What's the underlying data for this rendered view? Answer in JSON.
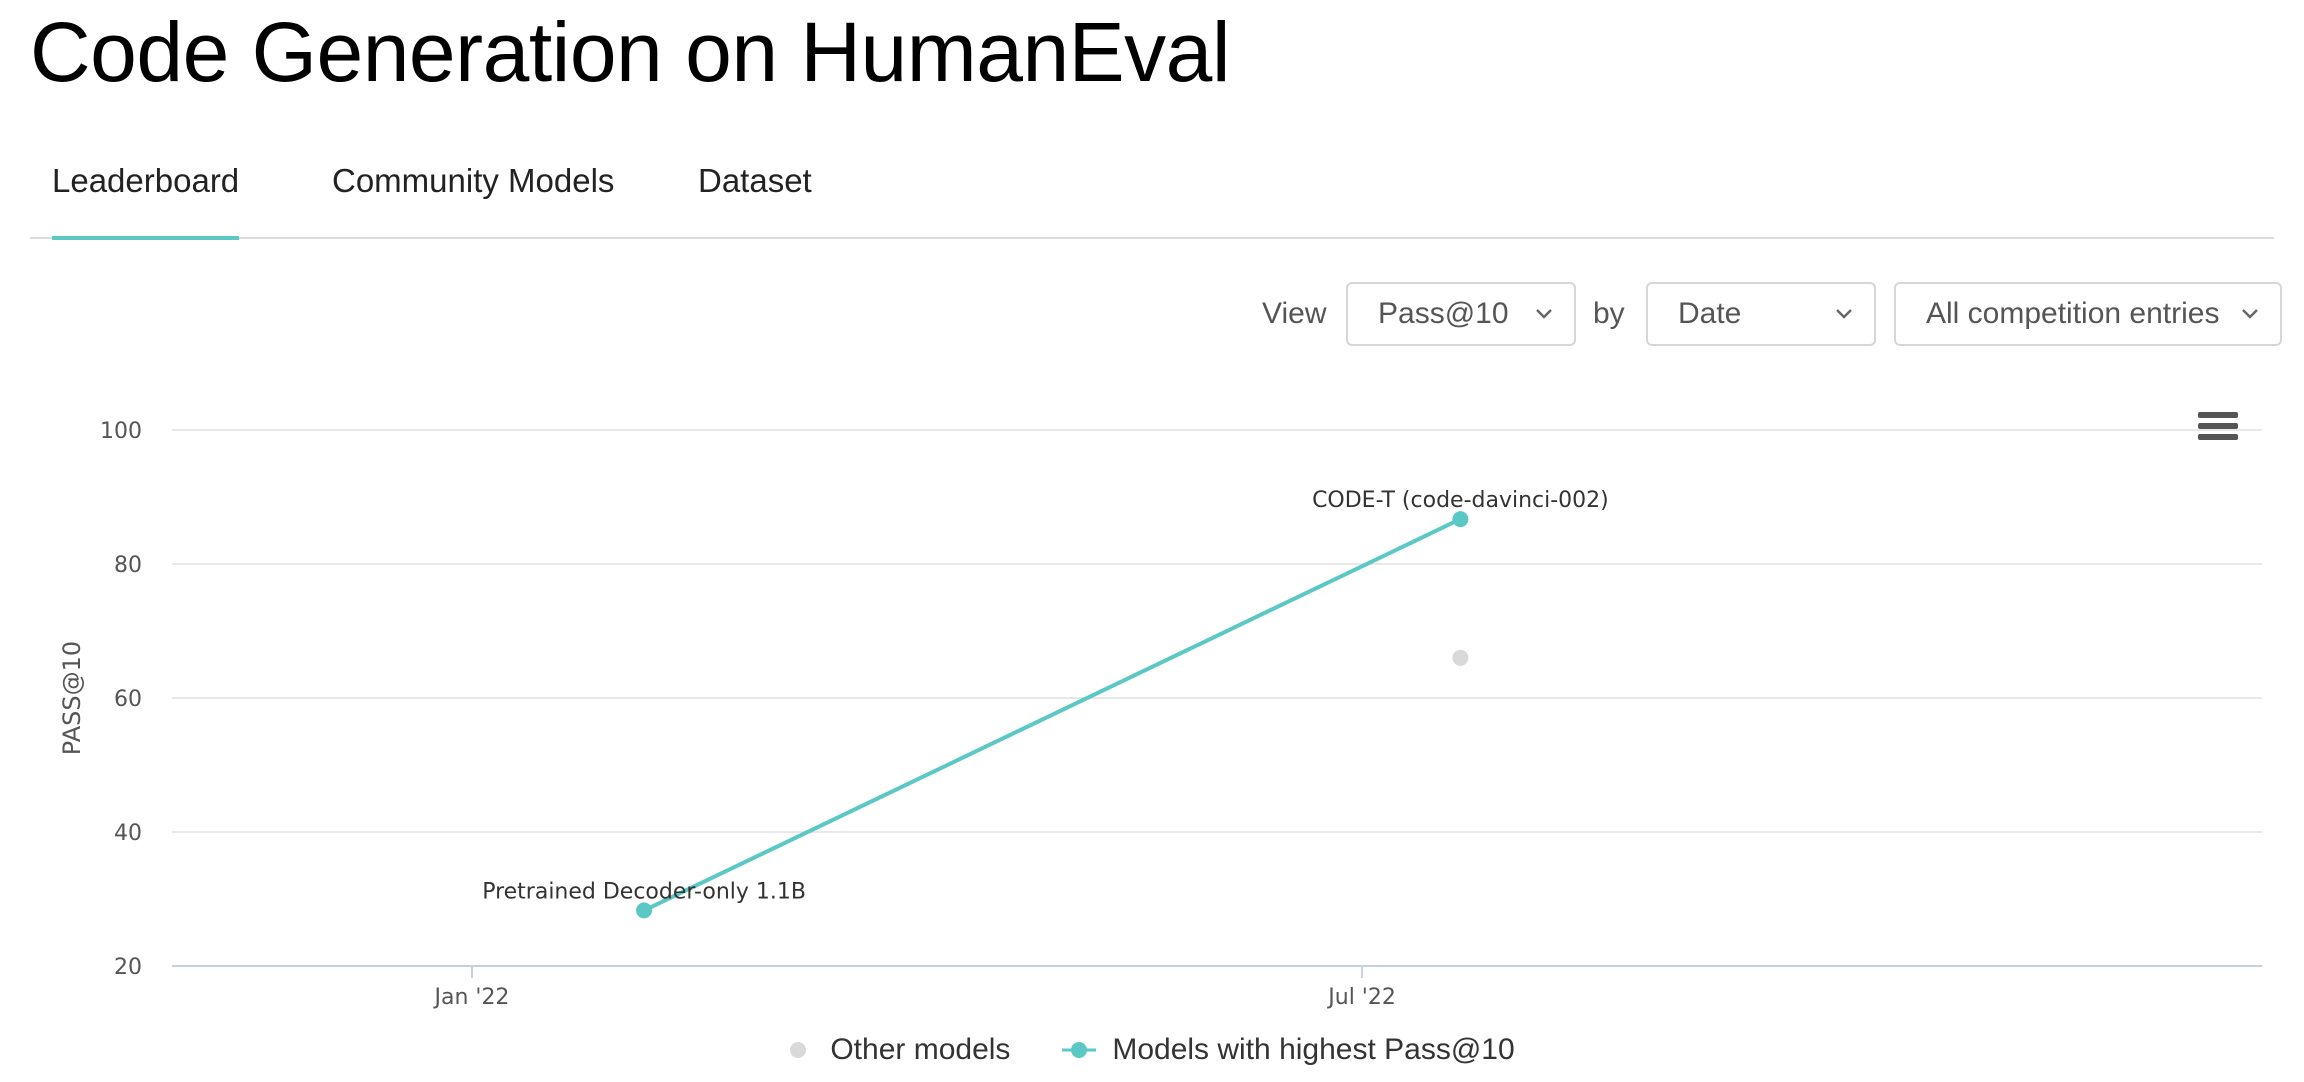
{
  "page": {
    "title": "Code Generation on HumanEval"
  },
  "tabs": [
    {
      "label": "Leaderboard",
      "active": true
    },
    {
      "label": "Community Models",
      "active": false
    },
    {
      "label": "Dataset",
      "active": false
    }
  ],
  "controls": {
    "view_label": "View",
    "metric_select": "Pass@10",
    "by_label": "by",
    "axis_select": "Date",
    "filter_select": "All competition entries"
  },
  "colors": {
    "accent": "#5bc8c5",
    "other_models": "#d9d9d9",
    "gridline": "#e0e0e0"
  },
  "chart_data": {
    "type": "scatter",
    "ylabel": "PASS@10",
    "xlabel": "",
    "ylim": [
      20,
      100
    ],
    "yticks": [
      20,
      40,
      60,
      80,
      100
    ],
    "xlim": [
      "2021-11-01",
      "2022-12-31"
    ],
    "xticks": [
      {
        "date": "2022-01-01",
        "label": "Jan '22"
      },
      {
        "date": "2022-07-01",
        "label": "Jul '22"
      }
    ],
    "grid": true,
    "legend_position": "bottom",
    "series": [
      {
        "name": "Other models",
        "color": "#d9d9d9",
        "marker": "circle",
        "line": false,
        "points": [
          {
            "x": "2022-07-21",
            "y": 66
          }
        ]
      },
      {
        "name": "Models with highest Pass@10",
        "color": "#5bc8c5",
        "marker": "circle",
        "line": true,
        "points": [
          {
            "x": "2022-02-05",
            "y": 28.3,
            "label": "Pretrained Decoder-only 1.1B"
          },
          {
            "x": "2022-07-21",
            "y": 86.7,
            "label": "CODE-T (code-davinci-002)"
          }
        ]
      }
    ]
  }
}
